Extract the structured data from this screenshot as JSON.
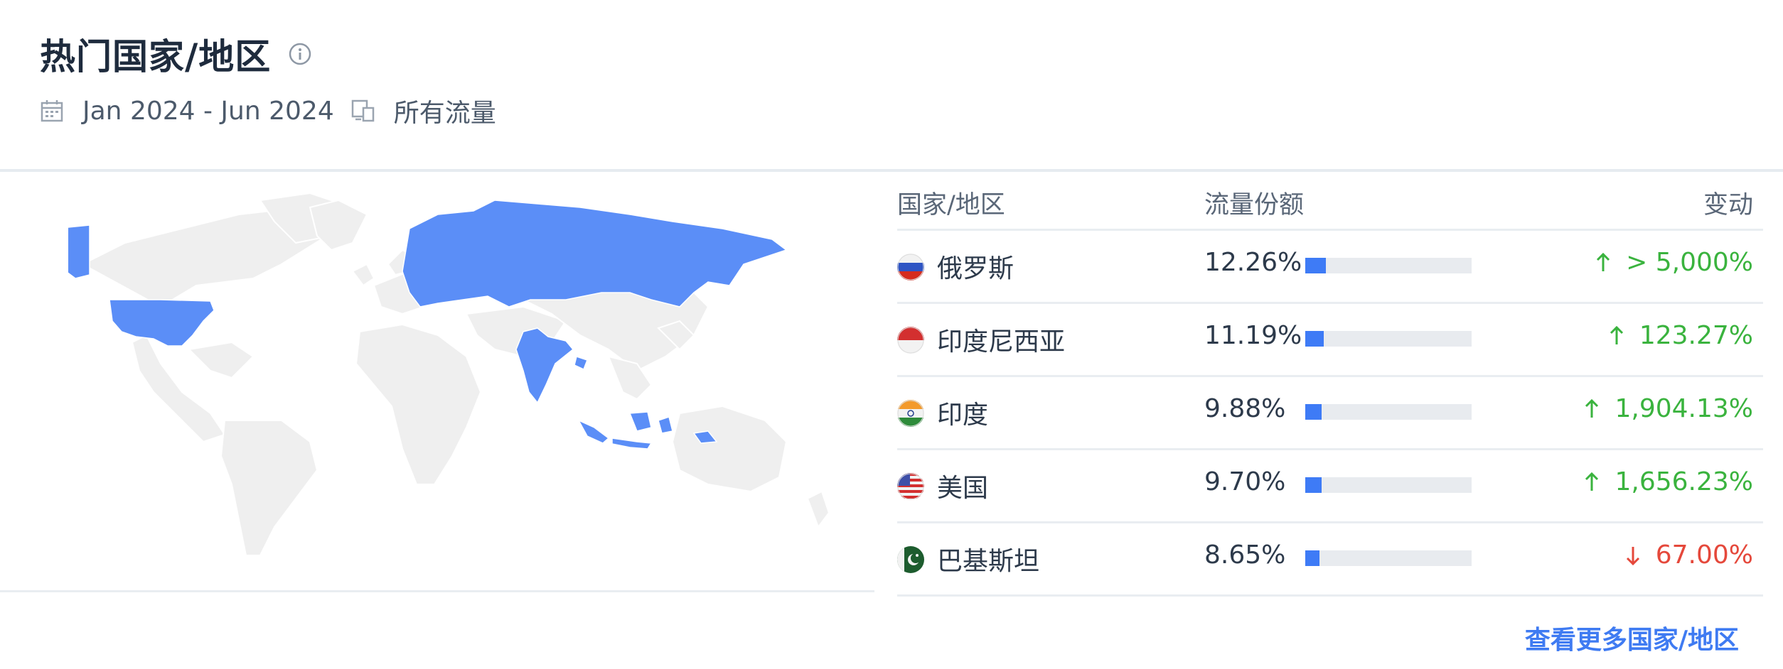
{
  "widget": {
    "title": "热门国家/地区",
    "date_range": "Jan 2024 - Jun 2024",
    "traffic_type": "所有流量"
  },
  "table": {
    "headers": {
      "country": "国家/地区",
      "share": "流量份额",
      "change": "变动"
    },
    "rows": [
      {
        "country": "俄罗斯",
        "share": "12.26%",
        "share_value": 12.26,
        "change": "> 5,000%",
        "trend": "up",
        "flag": "russia-flag"
      },
      {
        "country": "印度尼西亚",
        "share": "11.19%",
        "share_value": 11.19,
        "change": "123.27%",
        "trend": "up",
        "flag": "indonesia-flag"
      },
      {
        "country": "印度",
        "share": "9.88%",
        "share_value": 9.88,
        "change": "1,904.13%",
        "trend": "up",
        "flag": "india-flag"
      },
      {
        "country": "美国",
        "share": "9.70%",
        "share_value": 9.7,
        "change": "1,656.23%",
        "trend": "up",
        "flag": "usa-flag"
      },
      {
        "country": "巴基斯坦",
        "share": "8.65%",
        "share_value": 8.65,
        "change": "67.00%",
        "trend": "down",
        "flag": "pakistan-flag"
      }
    ]
  },
  "map": {
    "highlight_color": "#5b8ef7",
    "base_color": "#efefef",
    "highlighted_countries": [
      "russia",
      "indonesia",
      "india",
      "usa",
      "alaska"
    ]
  },
  "colors": {
    "up": "#3ab33e",
    "down": "#e5483b",
    "bar_fill": "#3e7bf6",
    "link": "#3f7bf2"
  },
  "footer": {
    "more_link": "查看更多国家/地区"
  }
}
